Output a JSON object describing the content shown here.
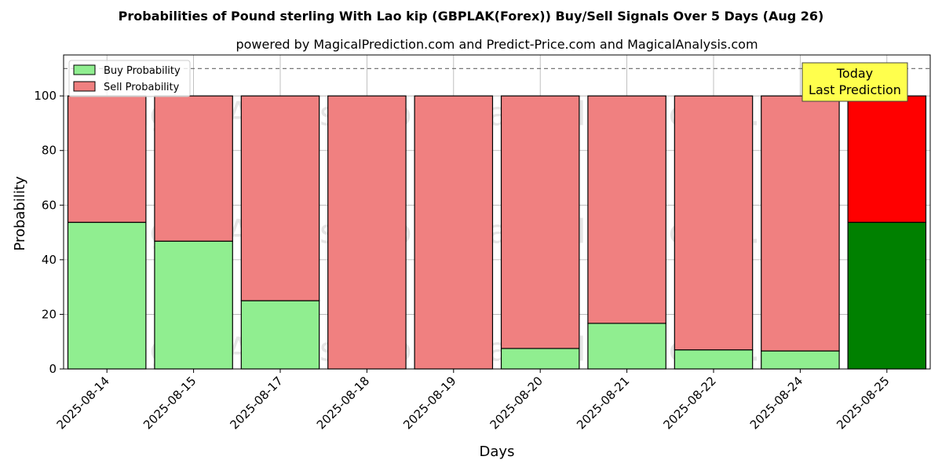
{
  "chart_data": {
    "type": "bar",
    "stacked": true,
    "title": "Probabilities of Pound sterling With Lao kip (GBPLAK(Forex)) Buy/Sell Signals Over 5 Days (Aug 26)",
    "subtitle": "powered by MagicalPrediction.com and Predict-Price.com and MagicalAnalysis.com",
    "xlabel": "Days",
    "ylabel": "Probability",
    "ylim": [
      0,
      115
    ],
    "yticks": [
      0,
      20,
      40,
      60,
      80,
      100
    ],
    "grid": true,
    "legend_position": "top-left",
    "reference_line": 110,
    "categories": [
      "2025-08-14",
      "2025-08-15",
      "2025-08-17",
      "2025-08-18",
      "2025-08-19",
      "2025-08-20",
      "2025-08-21",
      "2025-08-22",
      "2025-08-24",
      "2025-08-25"
    ],
    "series": [
      {
        "name": "Buy Probability",
        "values": [
          53.7,
          46.8,
          25.0,
          0,
          0,
          7.5,
          16.7,
          7.0,
          6.6,
          53.7
        ]
      },
      {
        "name": "Sell Probability",
        "values": [
          46.3,
          53.2,
          75.0,
          100,
          100,
          92.5,
          83.3,
          93.0,
          93.4,
          46.3
        ]
      }
    ],
    "colors": {
      "buy": "#90ee90",
      "sell": "#f08080",
      "buy_highlight": "#008000",
      "sell_highlight": "#ff0000",
      "annotation_bg": "#ffff4d"
    },
    "highlight_index": 9,
    "annotation": {
      "line1": "Today",
      "line2": "Last Prediction"
    },
    "watermarks": [
      "MagicalAnalysis.com",
      "MagicalPrediction.com",
      "MagicalAnalysis.com",
      "MagicalPrediction.com",
      "MagicalAnalysis.com",
      "MagicalPrediction.com"
    ]
  }
}
